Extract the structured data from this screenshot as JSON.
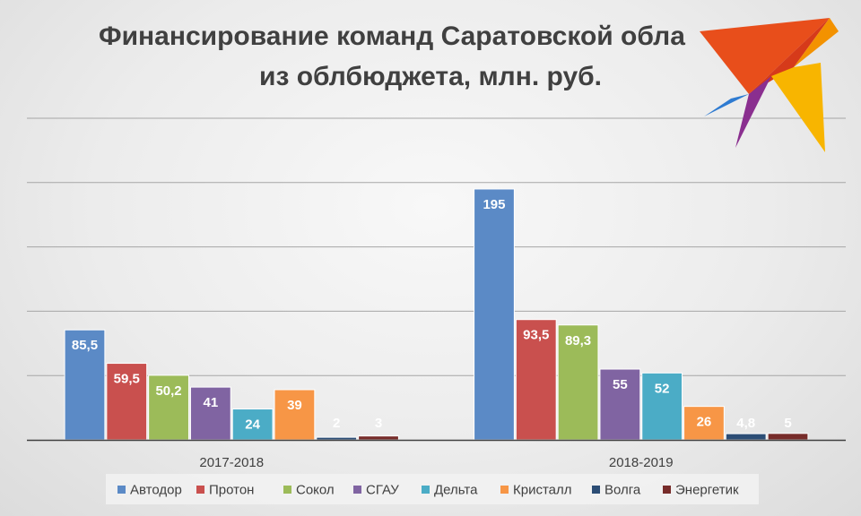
{
  "chart_data": {
    "type": "bar",
    "title_lines": [
      "Финансирование команд Саратовской обла",
      "из облбюджета, млн. руб."
    ],
    "categories": [
      "2017-2018",
      "2018-2019"
    ],
    "series": [
      {
        "name": "Автодор",
        "color": "#5b8ac6",
        "values": [
          85.5,
          195
        ],
        "labels": [
          "85,5",
          "195"
        ]
      },
      {
        "name": "Протон",
        "color": "#c9504e",
        "values": [
          59.5,
          93.5
        ],
        "labels": [
          "59,5",
          "93,5"
        ]
      },
      {
        "name": "Сокол",
        "color": "#9cbb59",
        "values": [
          50.2,
          89.3
        ],
        "labels": [
          "50,2",
          "89,3"
        ]
      },
      {
        "name": "СГАУ",
        "color": "#8064a2",
        "values": [
          41,
          55
        ],
        "labels": [
          "41",
          "55"
        ]
      },
      {
        "name": "Дельта",
        "color": "#4bacc6",
        "values": [
          24,
          52
        ],
        "labels": [
          "24",
          "52"
        ]
      },
      {
        "name": "Кристалл",
        "color": "#f79646",
        "values": [
          39,
          26
        ],
        "labels": [
          "39",
          "26"
        ]
      },
      {
        "name": "Волга",
        "color": "#2c4d75",
        "values": [
          2,
          4.8
        ],
        "labels": [
          "2",
          "4,8"
        ]
      },
      {
        "name": "Энергетик",
        "color": "#772c2a",
        "values": [
          3,
          5
        ],
        "labels": [
          "3",
          "5"
        ]
      }
    ],
    "ylim": [
      0,
      250
    ],
    "grid_step": 50,
    "grid": true,
    "legend_position": "bottom",
    "xlabel": "",
    "ylabel": ""
  },
  "colors": {
    "text": "#404040",
    "gridline": "#a6a6a6",
    "axis": "#404040",
    "logo": [
      "#e84e1b",
      "#f39200",
      "#8a2f8f",
      "#2e7bd1",
      "#f8b500"
    ]
  }
}
